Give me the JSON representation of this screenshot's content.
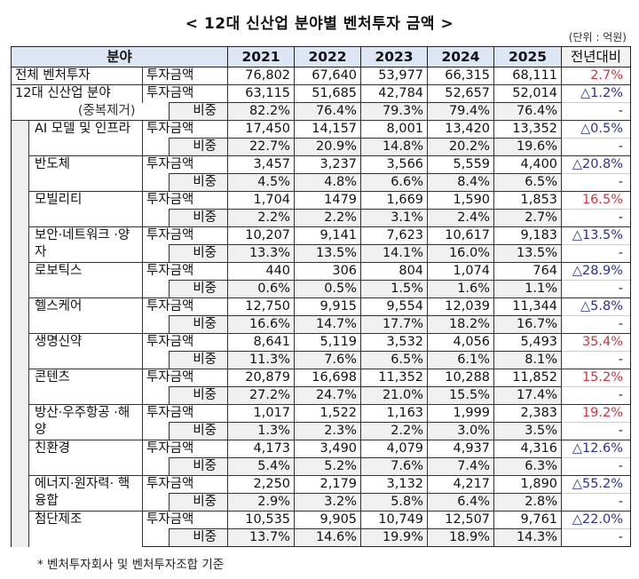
{
  "title": "< 12대 신산업 분야별 벤처투자 금액 >",
  "unit": "(단위 : 억원)",
  "header": {
    "field": "분야",
    "years": [
      "2021",
      "2022",
      "2023",
      "2024",
      "2025"
    ],
    "yoy": "전년대비"
  },
  "labels": {
    "amount": "투자금액",
    "share": "비중"
  },
  "total": {
    "name": "전체 벤처투자",
    "amount": [
      "76,802",
      "67,640",
      "53,977",
      "66,315",
      "68,111"
    ],
    "yoy": "2.7%",
    "yoy_color": "red"
  },
  "industries12": {
    "name": "12대 신산업 분야",
    "note": "(중복제거)",
    "amount": [
      "63,115",
      "51,685",
      "42,784",
      "52,657",
      "52,014"
    ],
    "share": [
      "82.2%",
      "76.4%",
      "79.3%",
      "79.4%",
      "76.4%"
    ],
    "yoy": "△1.2%",
    "yoy_color": "blue",
    "share_yoy": "-"
  },
  "sectors": [
    {
      "name": "AI 모델 및 인프라",
      "amount": [
        "17,450",
        "14,157",
        "8,001",
        "13,420",
        "13,352"
      ],
      "share": [
        "22.7%",
        "20.9%",
        "14.8%",
        "20.2%",
        "19.6%"
      ],
      "yoy": "△0.5%",
      "yoy_color": "blue",
      "share_yoy": "-"
    },
    {
      "name": "반도체",
      "amount": [
        "3,457",
        "3,237",
        "3,566",
        "5,559",
        "4,400"
      ],
      "share": [
        "4.5%",
        "4.8%",
        "6.6%",
        "8.4%",
        "6.5%"
      ],
      "yoy": "△20.8%",
      "yoy_color": "blue",
      "share_yoy": "-"
    },
    {
      "name": "모빌리티",
      "amount": [
        "1,704",
        "1479",
        "1,669",
        "1,590",
        "1,853"
      ],
      "share": [
        "2.2%",
        "2.2%",
        "3.1%",
        "2.4%",
        "2.7%"
      ],
      "yoy": "16.5%",
      "yoy_color": "red",
      "share_yoy": "-"
    },
    {
      "name": "보안·네트워크 ·양자",
      "amount": [
        "10,207",
        "9,141",
        "7,623",
        "10,617",
        "9,183"
      ],
      "share": [
        "13.3%",
        "13.5%",
        "14.1%",
        "16.0%",
        "13.5%"
      ],
      "yoy": "△13.5%",
      "yoy_color": "blue",
      "share_yoy": "-"
    },
    {
      "name": "로보틱스",
      "amount": [
        "440",
        "306",
        "804",
        "1,074",
        "764"
      ],
      "share": [
        "0.6%",
        "0.5%",
        "1.5%",
        "1.6%",
        "1.1%"
      ],
      "yoy": "△28.9%",
      "yoy_color": "blue",
      "share_yoy": "-"
    },
    {
      "name": "헬스케어",
      "amount": [
        "12,750",
        "9,915",
        "9,554",
        "12,039",
        "11,344"
      ],
      "share": [
        "16.6%",
        "14.7%",
        "17.7%",
        "18.2%",
        "16.7%"
      ],
      "yoy": "△5.8%",
      "yoy_color": "blue",
      "share_yoy": "-"
    },
    {
      "name": "생명신약",
      "amount": [
        "8,641",
        "5,119",
        "3,532",
        "4,056",
        "5,493"
      ],
      "share": [
        "11.3%",
        "7.6%",
        "6.5%",
        "6.1%",
        "8.1%"
      ],
      "yoy": "35.4%",
      "yoy_color": "red",
      "share_yoy": "-"
    },
    {
      "name": "콘텐츠",
      "amount": [
        "20,879",
        "16,698",
        "11,352",
        "10,288",
        "11,852"
      ],
      "share": [
        "27.2%",
        "24.7%",
        "21.0%",
        "15.5%",
        "17.4%"
      ],
      "yoy": "15.2%",
      "yoy_color": "red",
      "share_yoy": "-"
    },
    {
      "name": "방산·우주항공 ·해양",
      "amount": [
        "1,017",
        "1,522",
        "1,163",
        "1,999",
        "2,383"
      ],
      "share": [
        "1.3%",
        "2.3%",
        "2.2%",
        "3.0%",
        "3.5%"
      ],
      "yoy": "19.2%",
      "yoy_color": "red",
      "share_yoy": "-"
    },
    {
      "name": "친환경",
      "amount": [
        "4,173",
        "3,490",
        "4,079",
        "4,937",
        "4,316"
      ],
      "share": [
        "5.4%",
        "5.2%",
        "7.6%",
        "7.4%",
        "6.3%"
      ],
      "yoy": "△12.6%",
      "yoy_color": "blue",
      "share_yoy": "-"
    },
    {
      "name": "에너지·원자력· 핵융합",
      "amount": [
        "2,250",
        "2,179",
        "3,132",
        "4,217",
        "1,890"
      ],
      "share": [
        "2.9%",
        "3.2%",
        "5.8%",
        "6.4%",
        "2.8%"
      ],
      "yoy": "△55.2%",
      "yoy_color": "blue",
      "share_yoy": "-"
    },
    {
      "name": "첨단제조",
      "amount": [
        "10,535",
        "9,905",
        "10,749",
        "12,507",
        "9,761"
      ],
      "share": [
        "13.7%",
        "14.6%",
        "19.9%",
        "18.9%",
        "14.3%"
      ],
      "yoy": "△22.0%",
      "yoy_color": "blue",
      "share_yoy": "-"
    }
  ],
  "footnote": "* 벤처투자회사 및 벤처투자조합 기준",
  "colors": {
    "header_bg": "#dce6f5",
    "share_bg": "#f0f0f0",
    "increase": "#d0343f",
    "decrease": "#2b2f9e"
  }
}
